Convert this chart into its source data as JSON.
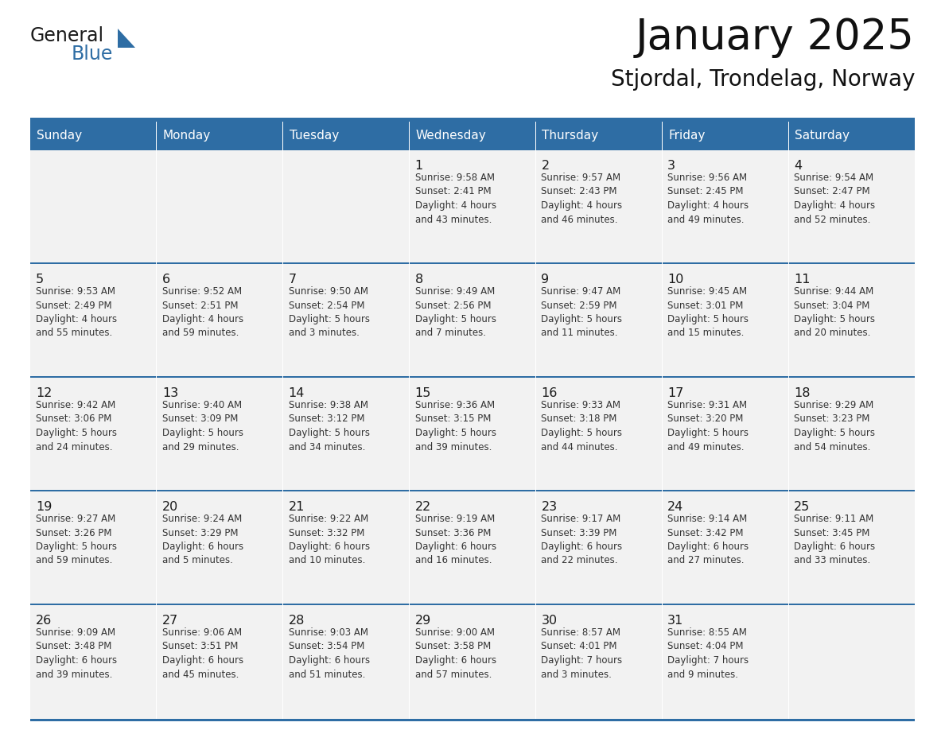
{
  "title": "January 2025",
  "subtitle": "Stjordal, Trondelag, Norway",
  "header_color": "#2E6DA4",
  "header_text_color": "#FFFFFF",
  "cell_bg_color": "#F2F2F2",
  "border_color": "#2E6DA4",
  "text_color": "#333333",
  "days_of_week": [
    "Sunday",
    "Monday",
    "Tuesday",
    "Wednesday",
    "Thursday",
    "Friday",
    "Saturday"
  ],
  "logo_general_color": "#1a1a1a",
  "logo_blue_color": "#2E6DA4",
  "weeks": [
    [
      {
        "day": "",
        "info": ""
      },
      {
        "day": "",
        "info": ""
      },
      {
        "day": "",
        "info": ""
      },
      {
        "day": "1",
        "info": "Sunrise: 9:58 AM\nSunset: 2:41 PM\nDaylight: 4 hours\nand 43 minutes."
      },
      {
        "day": "2",
        "info": "Sunrise: 9:57 AM\nSunset: 2:43 PM\nDaylight: 4 hours\nand 46 minutes."
      },
      {
        "day": "3",
        "info": "Sunrise: 9:56 AM\nSunset: 2:45 PM\nDaylight: 4 hours\nand 49 minutes."
      },
      {
        "day": "4",
        "info": "Sunrise: 9:54 AM\nSunset: 2:47 PM\nDaylight: 4 hours\nand 52 minutes."
      }
    ],
    [
      {
        "day": "5",
        "info": "Sunrise: 9:53 AM\nSunset: 2:49 PM\nDaylight: 4 hours\nand 55 minutes."
      },
      {
        "day": "6",
        "info": "Sunrise: 9:52 AM\nSunset: 2:51 PM\nDaylight: 4 hours\nand 59 minutes."
      },
      {
        "day": "7",
        "info": "Sunrise: 9:50 AM\nSunset: 2:54 PM\nDaylight: 5 hours\nand 3 minutes."
      },
      {
        "day": "8",
        "info": "Sunrise: 9:49 AM\nSunset: 2:56 PM\nDaylight: 5 hours\nand 7 minutes."
      },
      {
        "day": "9",
        "info": "Sunrise: 9:47 AM\nSunset: 2:59 PM\nDaylight: 5 hours\nand 11 minutes."
      },
      {
        "day": "10",
        "info": "Sunrise: 9:45 AM\nSunset: 3:01 PM\nDaylight: 5 hours\nand 15 minutes."
      },
      {
        "day": "11",
        "info": "Sunrise: 9:44 AM\nSunset: 3:04 PM\nDaylight: 5 hours\nand 20 minutes."
      }
    ],
    [
      {
        "day": "12",
        "info": "Sunrise: 9:42 AM\nSunset: 3:06 PM\nDaylight: 5 hours\nand 24 minutes."
      },
      {
        "day": "13",
        "info": "Sunrise: 9:40 AM\nSunset: 3:09 PM\nDaylight: 5 hours\nand 29 minutes."
      },
      {
        "day": "14",
        "info": "Sunrise: 9:38 AM\nSunset: 3:12 PM\nDaylight: 5 hours\nand 34 minutes."
      },
      {
        "day": "15",
        "info": "Sunrise: 9:36 AM\nSunset: 3:15 PM\nDaylight: 5 hours\nand 39 minutes."
      },
      {
        "day": "16",
        "info": "Sunrise: 9:33 AM\nSunset: 3:18 PM\nDaylight: 5 hours\nand 44 minutes."
      },
      {
        "day": "17",
        "info": "Sunrise: 9:31 AM\nSunset: 3:20 PM\nDaylight: 5 hours\nand 49 minutes."
      },
      {
        "day": "18",
        "info": "Sunrise: 9:29 AM\nSunset: 3:23 PM\nDaylight: 5 hours\nand 54 minutes."
      }
    ],
    [
      {
        "day": "19",
        "info": "Sunrise: 9:27 AM\nSunset: 3:26 PM\nDaylight: 5 hours\nand 59 minutes."
      },
      {
        "day": "20",
        "info": "Sunrise: 9:24 AM\nSunset: 3:29 PM\nDaylight: 6 hours\nand 5 minutes."
      },
      {
        "day": "21",
        "info": "Sunrise: 9:22 AM\nSunset: 3:32 PM\nDaylight: 6 hours\nand 10 minutes."
      },
      {
        "day": "22",
        "info": "Sunrise: 9:19 AM\nSunset: 3:36 PM\nDaylight: 6 hours\nand 16 minutes."
      },
      {
        "day": "23",
        "info": "Sunrise: 9:17 AM\nSunset: 3:39 PM\nDaylight: 6 hours\nand 22 minutes."
      },
      {
        "day": "24",
        "info": "Sunrise: 9:14 AM\nSunset: 3:42 PM\nDaylight: 6 hours\nand 27 minutes."
      },
      {
        "day": "25",
        "info": "Sunrise: 9:11 AM\nSunset: 3:45 PM\nDaylight: 6 hours\nand 33 minutes."
      }
    ],
    [
      {
        "day": "26",
        "info": "Sunrise: 9:09 AM\nSunset: 3:48 PM\nDaylight: 6 hours\nand 39 minutes."
      },
      {
        "day": "27",
        "info": "Sunrise: 9:06 AM\nSunset: 3:51 PM\nDaylight: 6 hours\nand 45 minutes."
      },
      {
        "day": "28",
        "info": "Sunrise: 9:03 AM\nSunset: 3:54 PM\nDaylight: 6 hours\nand 51 minutes."
      },
      {
        "day": "29",
        "info": "Sunrise: 9:00 AM\nSunset: 3:58 PM\nDaylight: 6 hours\nand 57 minutes."
      },
      {
        "day": "30",
        "info": "Sunrise: 8:57 AM\nSunset: 4:01 PM\nDaylight: 7 hours\nand 3 minutes."
      },
      {
        "day": "31",
        "info": "Sunrise: 8:55 AM\nSunset: 4:04 PM\nDaylight: 7 hours\nand 9 minutes."
      },
      {
        "day": "",
        "info": ""
      }
    ]
  ]
}
